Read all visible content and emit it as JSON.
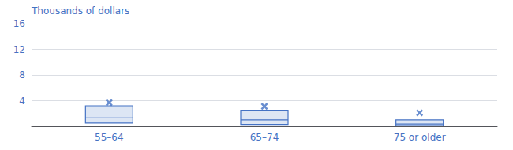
{
  "chart_data": {
    "type": "box",
    "categories": [
      "55–64",
      "65–74",
      "75 or older"
    ],
    "q1": [
      0.5,
      0.3,
      0.1
    ],
    "median": [
      1.3,
      1.0,
      0.35
    ],
    "q3": [
      3.2,
      2.5,
      1.0
    ],
    "mean": [
      3.7,
      3.1,
      2.1
    ],
    "ylabel": "Thousands of dollars",
    "ylim": [
      0,
      16
    ],
    "yticks": [
      {
        "value": 0,
        "label": ""
      },
      4,
      8,
      12,
      16
    ],
    "color": "#4472c4",
    "marker": "x",
    "grid": true
  }
}
